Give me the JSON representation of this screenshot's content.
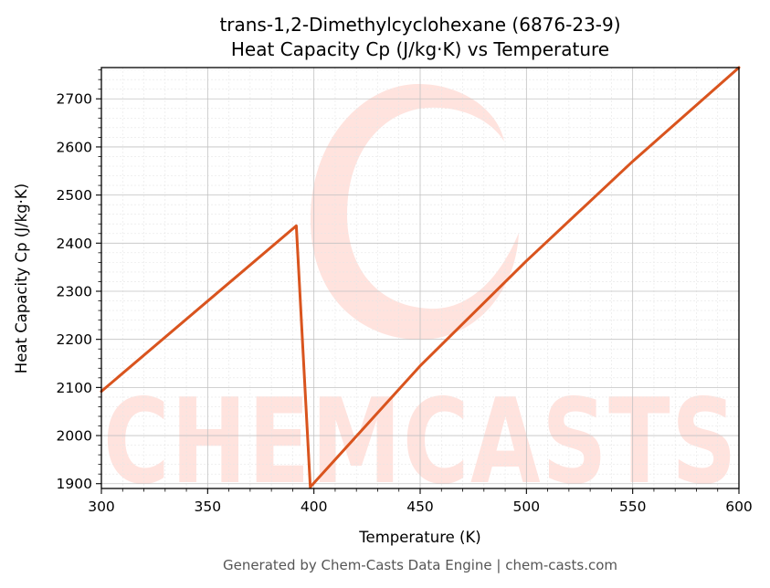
{
  "chart_data": {
    "type": "line",
    "title": "trans-1,2-Dimethylcyclohexane (6876-23-9)",
    "subtitle": "Heat Capacity Cp (J/kg·K) vs Temperature",
    "xlabel": "Temperature (K)",
    "ylabel": "Heat Capacity Cp (J/kg·K)",
    "xlim": [
      300,
      600
    ],
    "ylim": [
      1890,
      2765
    ],
    "x_ticks": [
      300,
      350,
      400,
      450,
      500,
      550,
      600
    ],
    "y_ticks": [
      1900,
      2000,
      2100,
      2200,
      2300,
      2400,
      2500,
      2600,
      2700
    ],
    "grid": true,
    "legend": "none",
    "series": [
      {
        "color": "#d9541e",
        "points": [
          [
            300,
            2092
          ],
          [
            391.7,
            2436
          ],
          [
            398.3,
            1893
          ],
          [
            450,
            2145
          ],
          [
            500,
            2363
          ],
          [
            550,
            2570
          ],
          [
            600,
            2765
          ]
        ]
      }
    ]
  },
  "watermark": {
    "text": "CHEMCASTS",
    "color": "#ffe3de"
  },
  "footer": "Generated by Chem-Casts Data Engine | chem-casts.com"
}
